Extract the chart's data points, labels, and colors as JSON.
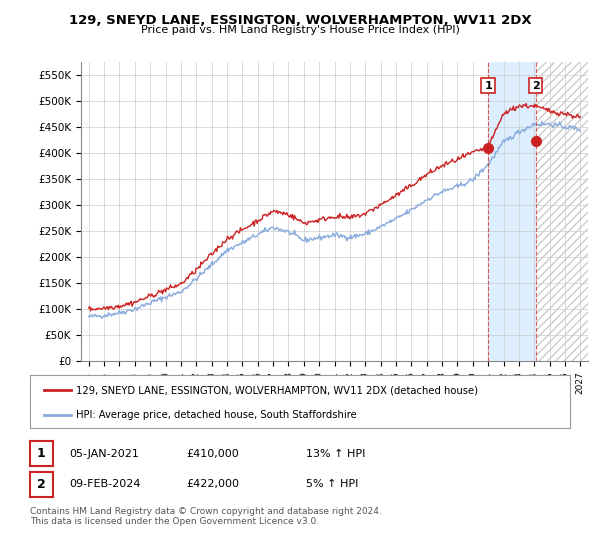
{
  "title": "129, SNEYD LANE, ESSINGTON, WOLVERHAMPTON, WV11 2DX",
  "subtitle": "Price paid vs. HM Land Registry's House Price Index (HPI)",
  "ylabel_ticks": [
    "£0",
    "£50K",
    "£100K",
    "£150K",
    "£200K",
    "£250K",
    "£300K",
    "£350K",
    "£400K",
    "£450K",
    "£500K",
    "£550K"
  ],
  "ytick_values": [
    0,
    50000,
    100000,
    150000,
    200000,
    250000,
    300000,
    350000,
    400000,
    450000,
    500000,
    550000
  ],
  "ylim": [
    0,
    575000
  ],
  "xlim_years": [
    1994.5,
    2027.5
  ],
  "xtick_years": [
    1995,
    1996,
    1997,
    1998,
    1999,
    2000,
    2001,
    2002,
    2003,
    2004,
    2005,
    2006,
    2007,
    2008,
    2009,
    2010,
    2011,
    2012,
    2013,
    2014,
    2015,
    2016,
    2017,
    2018,
    2019,
    2020,
    2021,
    2022,
    2023,
    2024,
    2025,
    2026,
    2027
  ],
  "red_line_color": "#cc2222",
  "blue_line_color": "#88aadd",
  "shaded_region_color": "#ddeeff",
  "hatch_color": "#cccccc",
  "marker1_year": 2021.0,
  "marker1_value": 410000,
  "marker2_year": 2024.1,
  "marker2_value": 422000,
  "legend_red_label": "129, SNEYD LANE, ESSINGTON, WOLVERHAMPTON, WV11 2DX (detached house)",
  "legend_blue_label": "HPI: Average price, detached house, South Staffordshire",
  "table_row1": [
    "1",
    "05-JAN-2021",
    "£410,000",
    "13% ↑ HPI"
  ],
  "table_row2": [
    "2",
    "09-FEB-2024",
    "£422,000",
    "5% ↑ HPI"
  ],
  "footnote": "Contains HM Land Registry data © Crown copyright and database right 2024.\nThis data is licensed under the Open Government Licence v3.0.",
  "background_color": "#ffffff",
  "grid_color": "#cccccc",
  "hpi_years": [
    1995,
    1996,
    1997,
    1998,
    1999,
    2000,
    2001,
    2002,
    2003,
    2004,
    2005,
    2006,
    2007,
    2008,
    2009,
    2010,
    2011,
    2012,
    2013,
    2014,
    2015,
    2016,
    2017,
    2018,
    2019,
    2020,
    2021,
    2022,
    2023,
    2024,
    2025,
    2026,
    2027
  ],
  "hpi_values": [
    85000,
    88000,
    93000,
    100000,
    112000,
    123000,
    133000,
    158000,
    185000,
    213000,
    227000,
    243000,
    257000,
    248000,
    232000,
    237000,
    242000,
    238000,
    244000,
    258000,
    273000,
    290000,
    310000,
    325000,
    335000,
    348000,
    378000,
    420000,
    440000,
    455000,
    455000,
    450000,
    445000
  ],
  "prop_years": [
    1995,
    1996,
    1997,
    1998,
    1999,
    2000,
    2001,
    2002,
    2003,
    2004,
    2005,
    2006,
    2007,
    2008,
    2009,
    2010,
    2011,
    2012,
    2013,
    2014,
    2015,
    2016,
    2017,
    2018,
    2019,
    2020,
    2021,
    2022,
    2023,
    2024,
    2025,
    2026,
    2027
  ],
  "prop_values": [
    100000,
    102000,
    106000,
    113000,
    125000,
    137000,
    148000,
    175000,
    205000,
    235000,
    252000,
    270000,
    288000,
    282000,
    265000,
    271000,
    278000,
    275000,
    283000,
    300000,
    318000,
    337000,
    358000,
    375000,
    387000,
    400000,
    410000,
    475000,
    490000,
    490000,
    480000,
    475000,
    468000
  ]
}
